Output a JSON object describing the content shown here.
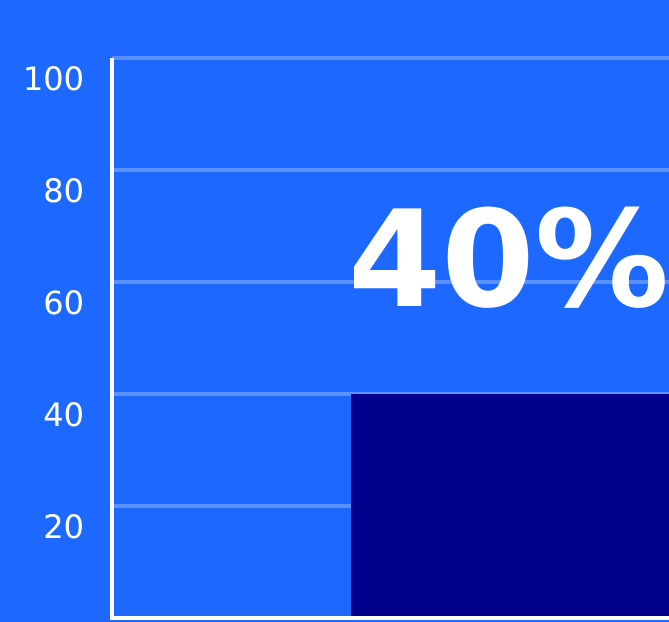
{
  "chart_data": {
    "type": "bar",
    "categories": [
      ""
    ],
    "values": [
      40
    ],
    "ylim": [
      0,
      100
    ],
    "yticks": [
      100,
      80,
      60,
      40,
      20
    ],
    "grid": true,
    "data_label": "40%",
    "colors": {
      "background": "#1d69ff",
      "bar": "#00008b",
      "gridline": "#5b91ff",
      "axis": "#ffffff",
      "text": "#ffffff"
    }
  }
}
